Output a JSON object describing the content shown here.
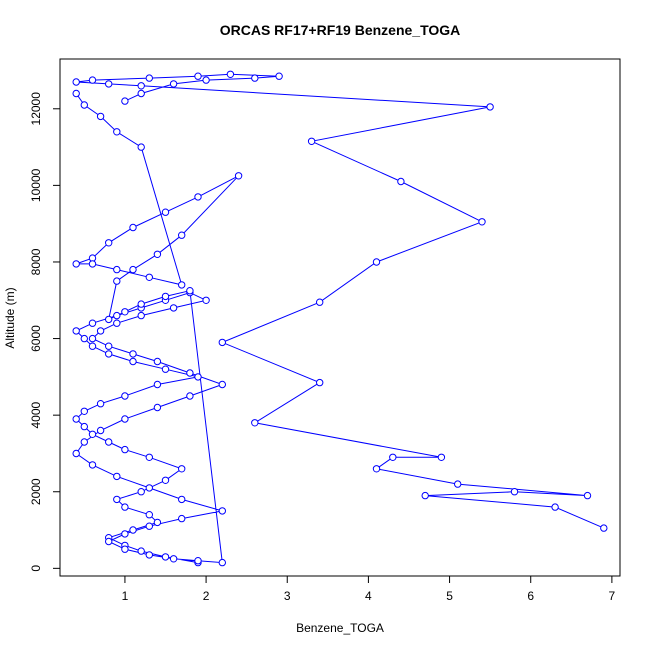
{
  "chart_data": {
    "type": "scatter",
    "title": "ORCAS RF17+RF19 Benzene_TOGA",
    "xlabel": "Benzene_TOGA",
    "ylabel": "Altitude (m)",
    "xlim": [
      0.2,
      7.1
    ],
    "ylim": [
      -200,
      13300
    ],
    "xticks": [
      1,
      2,
      3,
      4,
      5,
      6,
      7
    ],
    "yticks": [
      0,
      2000,
      4000,
      6000,
      8000,
      10000,
      12000
    ],
    "colors": {
      "series": "#0000ff",
      "frame": "#000000",
      "background": "#ffffff"
    },
    "series": [
      {
        "marker": "open-circle",
        "connected": true,
        "x": [
          6.9,
          6.3,
          4.7,
          5.8,
          6.7,
          5.1,
          4.1,
          4.3,
          4.9,
          2.6,
          3.4,
          2.2,
          3.4,
          4.1,
          5.4,
          4.4,
          3.3,
          5.5,
          1.2,
          0.8,
          0.4,
          0.6,
          1.3,
          1.9,
          2.3,
          2.9,
          2.6,
          2.0,
          1.6,
          1.2,
          1.0
        ],
        "y": [
          1050,
          1600,
          1900,
          2000,
          1900,
          2200,
          2600,
          2900,
          2900,
          3800,
          4850,
          5900,
          6950,
          8000,
          9050,
          10100,
          11150,
          12050,
          12600,
          12650,
          12700,
          12750,
          12800,
          12850,
          12900,
          12850,
          12800,
          12750,
          12650,
          12400,
          12200
        ]
      },
      {
        "marker": "open-circle",
        "connected": true,
        "x": [
          1.9,
          1.5,
          1.2,
          1.0,
          0.8,
          1.1,
          1.4,
          1.3,
          1.0,
          0.9,
          1.2,
          1.5,
          1.7,
          1.3,
          1.0,
          0.8,
          0.6,
          0.5,
          0.4,
          0.5,
          0.7,
          1.0,
          1.4,
          1.9,
          1.5,
          1.1,
          0.8,
          0.6,
          0.5,
          0.4,
          0.6,
          0.9,
          1.2,
          1.5,
          1.8,
          2.0,
          1.6,
          1.2,
          0.9,
          0.7,
          0.6,
          0.8,
          1.1,
          1.4,
          1.8,
          2.2,
          1.8,
          1.4,
          1.0,
          0.7,
          0.5,
          0.4,
          0.6,
          0.9,
          1.3,
          1.7,
          2.2,
          1.7,
          1.3,
          1.0,
          0.8,
          1.0,
          1.3,
          1.6,
          1.9,
          2.2,
          1.8,
          1.5,
          1.2,
          1.0,
          0.8,
          0.9,
          1.1,
          1.4,
          1.7,
          2.4,
          1.9,
          1.5,
          1.1,
          0.8,
          0.6,
          0.4,
          0.6,
          0.9,
          1.3,
          1.7,
          1.2,
          0.9,
          0.7,
          0.5,
          0.4
        ],
        "y": [
          150,
          300,
          450,
          600,
          800,
          1000,
          1200,
          1400,
          1600,
          1800,
          2000,
          2300,
          2600,
          2900,
          3100,
          3300,
          3500,
          3700,
          3900,
          4100,
          4300,
          4500,
          4800,
          5000,
          5200,
          5400,
          5600,
          5800,
          6000,
          6200,
          6400,
          6600,
          6800,
          7000,
          7200,
          7000,
          6800,
          6600,
          6400,
          6200,
          6000,
          5800,
          5600,
          5400,
          5100,
          4800,
          4500,
          4200,
          3900,
          3600,
          3300,
          3000,
          2700,
          2400,
          2100,
          1800,
          1500,
          1300,
          1100,
          900,
          700,
          500,
          350,
          250,
          200,
          150,
          7250,
          7100,
          6900,
          6700,
          6500,
          7500,
          7800,
          8200,
          8700,
          10250,
          9700,
          9300,
          8900,
          8500,
          8100,
          7950,
          7950,
          7800,
          7600,
          7400,
          11000,
          11400,
          11800,
          12100,
          12400
        ]
      }
    ]
  }
}
